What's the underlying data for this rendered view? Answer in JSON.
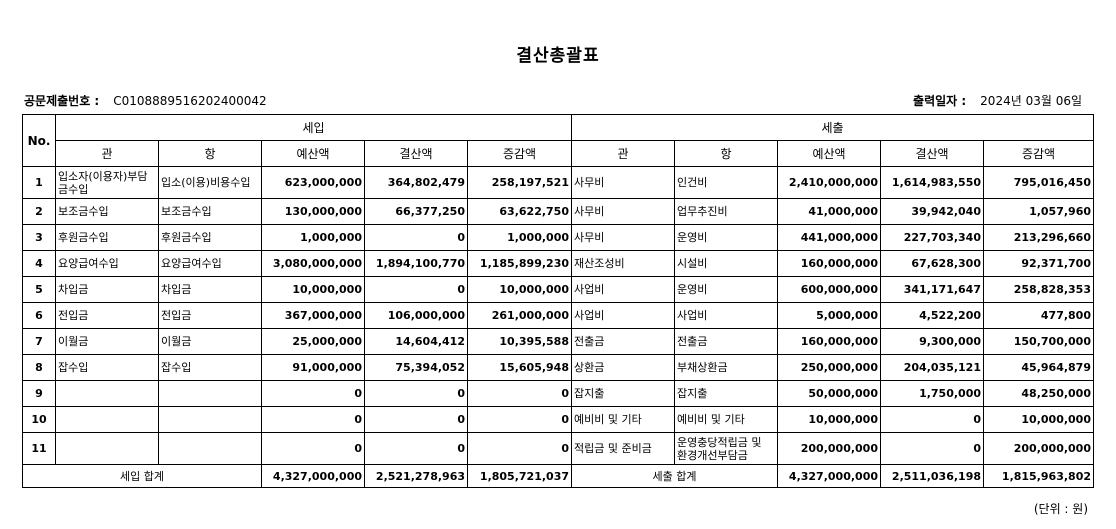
{
  "title": "결산총괄표",
  "doc_no": {
    "label": "공문제출번호 :",
    "value": "C0108889516202400042"
  },
  "print_date": {
    "label": "출력일자 :",
    "value": "2024년 03월 06일"
  },
  "headers": {
    "no": "No.",
    "income": "세입",
    "expense": "세출",
    "gwan": "관",
    "hang": "항",
    "budget": "예산액",
    "settle": "결산액",
    "diff": "증감액"
  },
  "rows": [
    {
      "no": "1",
      "ig": "입소자(이용자)부담금수입",
      "ih": "입소(이용)비용수입",
      "ib": "623,000,000",
      "is": "364,802,479",
      "id": "258,197,521",
      "eg": "사무비",
      "eh": "인건비",
      "eb": "2,410,000,000",
      "es": "1,614,983,550",
      "ed": "795,016,450"
    },
    {
      "no": "2",
      "ig": "보조금수입",
      "ih": "보조금수입",
      "ib": "130,000,000",
      "is": "66,377,250",
      "id": "63,622,750",
      "eg": "사무비",
      "eh": "업무추진비",
      "eb": "41,000,000",
      "es": "39,942,040",
      "ed": "1,057,960"
    },
    {
      "no": "3",
      "ig": "후원금수입",
      "ih": "후원금수입",
      "ib": "1,000,000",
      "is": "0",
      "id": "1,000,000",
      "eg": "사무비",
      "eh": "운영비",
      "eb": "441,000,000",
      "es": "227,703,340",
      "ed": "213,296,660"
    },
    {
      "no": "4",
      "ig": "요양급여수입",
      "ih": "요양급여수입",
      "ib": "3,080,000,000",
      "is": "1,894,100,770",
      "id": "1,185,899,230",
      "eg": "재산조성비",
      "eh": "시설비",
      "eb": "160,000,000",
      "es": "67,628,300",
      "ed": "92,371,700"
    },
    {
      "no": "5",
      "ig": "차입금",
      "ih": "차입금",
      "ib": "10,000,000",
      "is": "0",
      "id": "10,000,000",
      "eg": "사업비",
      "eh": "운영비",
      "eb": "600,000,000",
      "es": "341,171,647",
      "ed": "258,828,353"
    },
    {
      "no": "6",
      "ig": "전입금",
      "ih": "전입금",
      "ib": "367,000,000",
      "is": "106,000,000",
      "id": "261,000,000",
      "eg": "사업비",
      "eh": "사업비",
      "eb": "5,000,000",
      "es": "4,522,200",
      "ed": "477,800"
    },
    {
      "no": "7",
      "ig": "이월금",
      "ih": "이월금",
      "ib": "25,000,000",
      "is": "14,604,412",
      "id": "10,395,588",
      "eg": "전출금",
      "eh": "전출금",
      "eb": "160,000,000",
      "es": "9,300,000",
      "ed": "150,700,000"
    },
    {
      "no": "8",
      "ig": "잡수입",
      "ih": "잡수입",
      "ib": "91,000,000",
      "is": "75,394,052",
      "id": "15,605,948",
      "eg": "상환금",
      "eh": "부채상환금",
      "eb": "250,000,000",
      "es": "204,035,121",
      "ed": "45,964,879"
    },
    {
      "no": "9",
      "ig": "",
      "ih": "",
      "ib": "0",
      "is": "0",
      "id": "0",
      "eg": "잡지출",
      "eh": "잡지출",
      "eb": "50,000,000",
      "es": "1,750,000",
      "ed": "48,250,000"
    },
    {
      "no": "10",
      "ig": "",
      "ih": "",
      "ib": "0",
      "is": "0",
      "id": "0",
      "eg": "예비비 및 기타",
      "eh": "예비비 및 기타",
      "eb": "10,000,000",
      "es": "0",
      "ed": "10,000,000"
    },
    {
      "no": "11",
      "ig": "",
      "ih": "",
      "ib": "0",
      "is": "0",
      "id": "0",
      "eg": "적립금 및 준비금",
      "eh": "운영충당적립금 및 환경개선부담금",
      "eb": "200,000,000",
      "es": "0",
      "ed": "200,000,000"
    }
  ],
  "totals": {
    "income_label": "세입 합계",
    "ib": "4,327,000,000",
    "is": "2,521,278,963",
    "id": "1,805,721,037",
    "expense_label": "세출 합계",
    "eb": "4,327,000,000",
    "es": "2,511,036,198",
    "ed": "1,815,963,802"
  },
  "unit": "(단위 : 원)"
}
